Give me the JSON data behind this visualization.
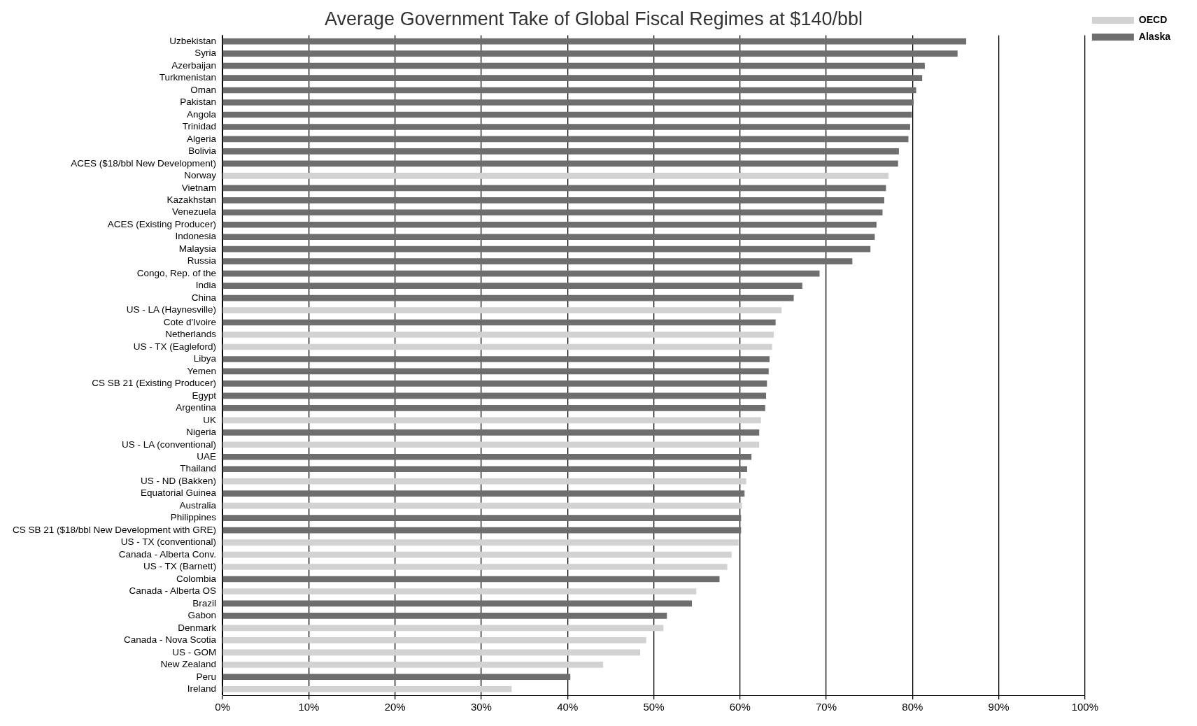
{
  "chart_data": {
    "type": "bar",
    "orientation": "horizontal",
    "title": "Average Government Take of Global Fiscal Regimes at $140/bbl",
    "categories": [
      "Uzbekistan",
      "Syria",
      "Azerbaijan",
      "Turkmenistan",
      "Oman",
      "Pakistan",
      "Angola",
      "Trinidad",
      "Algeria",
      "Bolivia",
      "ACES ($18/bbl New Development)",
      "Norway",
      "Vietnam",
      "Kazakhstan",
      "Venezuela",
      "ACES (Existing Producer)",
      "Indonesia",
      "Malaysia",
      "Russia",
      "Congo, Rep. of the",
      "India",
      "China",
      "US - LA (Haynesville)",
      "Cote d'Ivoire",
      "Netherlands",
      "US - TX (Eagleford)",
      "Libya",
      "Yemen",
      "CS SB 21 (Existing Producer)",
      "Egypt",
      "Argentina",
      "UK",
      "Nigeria",
      "US - LA (conventional)",
      "UAE",
      "Thailand",
      "US - ND (Bakken)",
      "Equatorial Guinea",
      "Australia",
      "Philippines",
      "CS SB 21 ($18/bbl New Development with GRE)",
      "US - TX (conventional)",
      "Canada - Alberta Conv.",
      "US - TX (Barnett)",
      "Colombia",
      "Canada - Alberta OS",
      "Brazil",
      "Gabon",
      "Denmark",
      "Canada - Nova Scotia",
      "US - GOM",
      "New Zealand",
      "Peru",
      "Ireland"
    ],
    "series": [
      {
        "name": "OECD",
        "color": "#d2d2d2",
        "values": [
          null,
          null,
          null,
          null,
          null,
          null,
          null,
          null,
          null,
          null,
          null,
          77.2,
          null,
          null,
          null,
          null,
          null,
          null,
          null,
          null,
          null,
          null,
          64.8,
          null,
          63.9,
          63.7,
          null,
          null,
          null,
          null,
          null,
          62.4,
          null,
          62.2,
          null,
          null,
          60.7,
          null,
          60.2,
          null,
          null,
          59.8,
          59.0,
          58.5,
          null,
          54.9,
          null,
          null,
          51.1,
          49.1,
          48.4,
          44.1,
          null,
          33.5
        ]
      },
      {
        "name": "Alaska",
        "color": "#6e6e6e",
        "values": [
          86.2,
          85.2,
          81.4,
          81.1,
          80.4,
          80.1,
          79.9,
          79.7,
          79.5,
          78.4,
          78.3,
          null,
          76.9,
          76.7,
          76.5,
          75.8,
          75.6,
          75.1,
          73.0,
          69.2,
          67.2,
          66.2,
          null,
          64.1,
          null,
          null,
          63.4,
          63.3,
          63.1,
          63.0,
          62.9,
          null,
          62.2,
          null,
          61.3,
          60.8,
          null,
          60.5,
          null,
          60.1,
          60.1,
          null,
          null,
          null,
          57.6,
          null,
          54.4,
          51.5,
          null,
          null,
          null,
          null,
          40.3,
          null
        ]
      }
    ],
    "xlim": [
      0,
      100
    ],
    "xticks": [
      {
        "value": 0,
        "label": "0%"
      },
      {
        "value": 10,
        "label": "10%"
      },
      {
        "value": 20,
        "label": "20%"
      },
      {
        "value": 30,
        "label": "30%"
      },
      {
        "value": 40,
        "label": "40%"
      },
      {
        "value": 50,
        "label": "50%"
      },
      {
        "value": 60,
        "label": "60%"
      },
      {
        "value": 70,
        "label": "70%"
      },
      {
        "value": 80,
        "label": "80%"
      },
      {
        "value": 90,
        "label": "90%"
      },
      {
        "value": 100,
        "label": "100%"
      }
    ],
    "grid": "x",
    "legend": "top right"
  }
}
